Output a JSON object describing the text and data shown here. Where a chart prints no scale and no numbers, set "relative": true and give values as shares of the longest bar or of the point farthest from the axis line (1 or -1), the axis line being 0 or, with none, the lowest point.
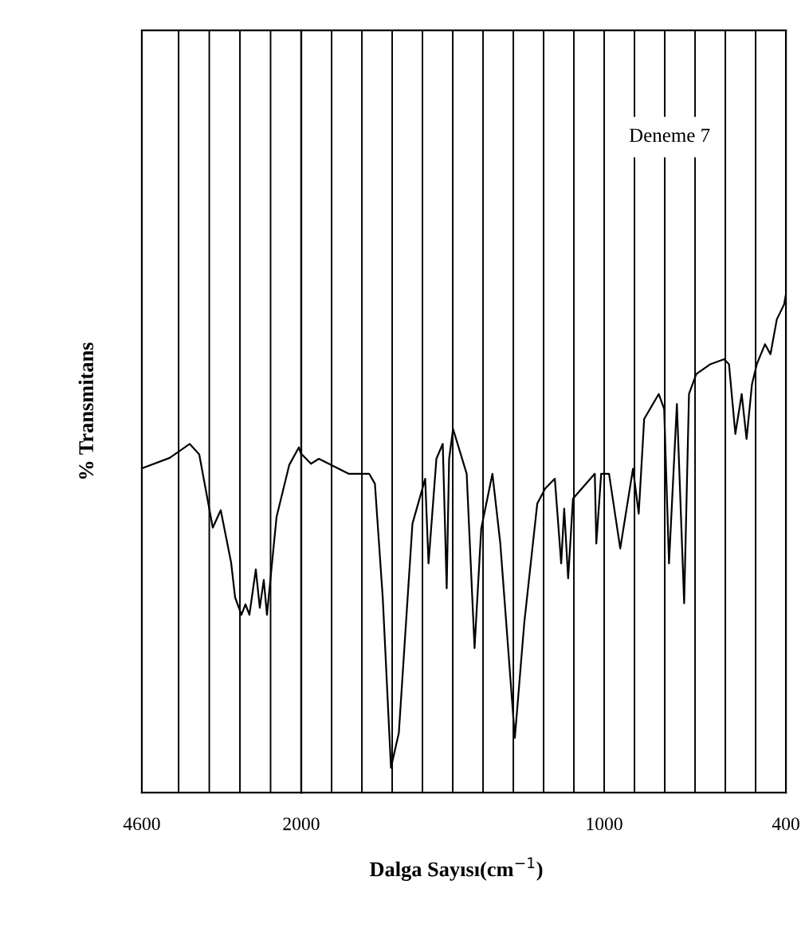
{
  "chart_data": [
    {
      "type": "line",
      "relative": true,
      "ylabel": "% Transmitans",
      "xlim": [
        4600,
        2000
      ],
      "xticks": [
        4600,
        {
          "value": 4000,
          "label": null
        },
        {
          "value": 3500,
          "label": null
        },
        {
          "value": 3000,
          "label": null
        },
        {
          "value": 2500,
          "label": null
        },
        2000
      ],
      "grid": "x",
      "marker": "none",
      "line_style": "solid",
      "series": [
        {
          "color": "#000000",
          "x": [
            4600,
            4145,
            3820,
            3664,
            3443,
            3313,
            3144,
            3079,
            2975,
            2910,
            2845,
            2741,
            2676,
            2611,
            2559,
            2403,
            2195,
            2039,
            2000
          ],
          "values": [
            0.93,
            0.96,
            1.0,
            0.97,
            0.76,
            0.81,
            0.66,
            0.56,
            0.51,
            0.54,
            0.51,
            0.64,
            0.53,
            0.61,
            0.51,
            0.79,
            0.94,
            0.99,
            0.97
          ]
        }
      ]
    },
    {
      "type": "line",
      "relative": true,
      "xlabel": "Dalga Sayısı(cm$^{−1}$)",
      "annotations": [
        "Deneme 7"
      ],
      "xlim": [
        2000,
        400
      ],
      "xticks": [
        {
          "value": 1900,
          "label": null
        },
        {
          "value": 1800,
          "label": null
        },
        {
          "value": 1700,
          "label": null
        },
        {
          "value": 1600,
          "label": null
        },
        {
          "value": 1500,
          "label": null
        },
        {
          "value": 1400,
          "label": null
        },
        {
          "value": 1300,
          "label": null
        },
        {
          "value": 1200,
          "label": null
        },
        {
          "value": 1100,
          "label": null
        },
        1000,
        {
          "value": 900,
          "label": null
        },
        {
          "value": 800,
          "label": null
        },
        {
          "value": 700,
          "label": null
        },
        {
          "value": 600,
          "label": null
        },
        {
          "value": 500,
          "label": null
        },
        400
      ],
      "grid": "x",
      "marker": "none",
      "line_style": "solid",
      "series": [
        {
          "color": "#000000",
          "x": [
            2000,
            1968,
            1942,
            1844,
            1776,
            1757,
            1731,
            1704,
            1678,
            1633,
            1591,
            1580,
            1554,
            1533,
            1520,
            1512,
            1499,
            1454,
            1428,
            1406,
            1369,
            1343,
            1295,
            1264,
            1221,
            1195,
            1163,
            1142,
            1132,
            1119,
            1103,
            1031,
            1026,
            1010,
            984,
            947,
            905,
            886,
            868,
            820,
            802,
            786,
            760,
            736,
            720,
            696,
            649,
            604,
            588,
            567,
            546,
            530,
            512,
            496,
            469,
            451,
            430,
            406,
            400
          ],
          "values": [
            0.68,
            0.66,
            0.67,
            0.64,
            0.64,
            0.62,
            0.39,
            0.05,
            0.12,
            0.54,
            0.63,
            0.46,
            0.67,
            0.7,
            0.41,
            0.67,
            0.73,
            0.64,
            0.29,
            0.53,
            0.64,
            0.5,
            0.11,
            0.34,
            0.58,
            0.61,
            0.63,
            0.46,
            0.57,
            0.43,
            0.59,
            0.64,
            0.5,
            0.64,
            0.64,
            0.49,
            0.65,
            0.56,
            0.75,
            0.8,
            0.77,
            0.46,
            0.78,
            0.38,
            0.8,
            0.84,
            0.86,
            0.87,
            0.86,
            0.72,
            0.8,
            0.71,
            0.82,
            0.86,
            0.9,
            0.88,
            0.95,
            0.98,
            1.0
          ]
        }
      ]
    }
  ]
}
